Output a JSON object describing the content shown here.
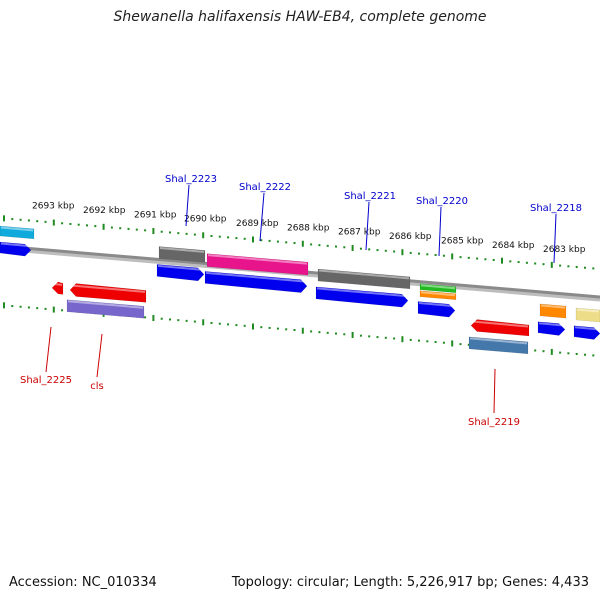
{
  "title": "Shewanella halifaxensis HAW-EB4, complete genome",
  "footer": {
    "accession": "Accession: NC_010334",
    "summary": "Topology: circular; Length: 5,226,917 bp; Genes: 4,433"
  },
  "ruler": {
    "ticks": [
      "2693 kbp",
      "2692 kbp",
      "2691 kbp",
      "2690 kbp",
      "2689 kbp",
      "2688 kbp",
      "2687 kbp",
      "2686 kbp",
      "2685 kbp",
      "2684 kbp",
      "2683 kbp"
    ]
  },
  "colors": {
    "backbone": "#8a8a8a",
    "ticks": "#1f8a1f",
    "forward_labels": "#0000cc",
    "reverse_labels": "#cc0000",
    "cds": "#0000ee",
    "gene_gray": "#666666",
    "gene_magenta": "#e8148c",
    "gene_green": "#22bb22",
    "gene_orange": "#ff8800",
    "gene_red": "#ee0000",
    "gene_purple": "#7766cc",
    "gene_steel": "#4477aa",
    "gene_cyan": "#11aadd",
    "gene_khaki": "#eedd88"
  },
  "genes": {
    "forward": [
      "Shal_2223",
      "Shal_2222",
      "Shal_2221",
      "Shal_2220",
      "Shal_2218"
    ],
    "reverse": [
      "Shal_2225",
      "cls",
      "Shal_2219"
    ]
  }
}
